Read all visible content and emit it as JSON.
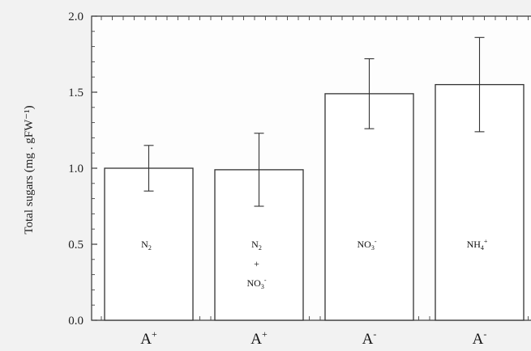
{
  "chart_data": {
    "type": "bar",
    "ylabel": "Total sugars (mg . gFW⁻¹)",
    "ylim": [
      0,
      2.0
    ],
    "yticks": [
      "0.0",
      "0.5",
      "1.0",
      "1.5",
      "2.0"
    ],
    "categories": [
      "A⁺",
      "A⁺",
      "A⁻",
      "A⁻"
    ],
    "bar_labels": [
      [
        "N₂"
      ],
      [
        "N₂",
        "+",
        "NO₃⁻"
      ],
      [
        "NO₃⁻"
      ],
      [
        "NH₄⁺"
      ]
    ],
    "values": [
      1.0,
      0.99,
      1.49,
      1.55
    ],
    "errors": [
      [
        0.85,
        1.15
      ],
      [
        0.75,
        1.23
      ],
      [
        1.26,
        1.72
      ],
      [
        1.24,
        1.86
      ]
    ],
    "grid": false,
    "colors": {
      "bar_fill": "#ffffff",
      "stroke": "#333333"
    }
  }
}
